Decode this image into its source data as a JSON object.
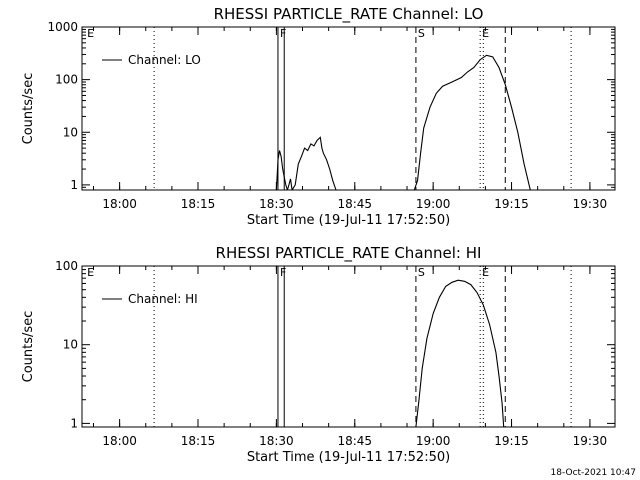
{
  "footer_timestamp": "18-Oct-2021 10:47",
  "chart_data": [
    {
      "type": "line",
      "title": "RHESSI PARTICLE_RATE Channel: LO",
      "xlabel": "Start Time (19-Jul-11 17:52:50)",
      "ylabel": "Counts/sec",
      "yscale": "log",
      "xlim": [
        17.88,
        19.58
      ],
      "ylim": [
        0.8,
        1000
      ],
      "xticks": [
        18.0,
        18.25,
        18.5,
        18.75,
        19.0,
        19.25,
        19.5
      ],
      "xticklabels": [
        "18:00",
        "18:15",
        "18:30",
        "18:45",
        "19:00",
        "19:15",
        "19:30"
      ],
      "yticks": [
        1,
        10,
        100,
        1000
      ],
      "yticklabels": [
        "1",
        "10",
        "100",
        "1000"
      ],
      "legend": {
        "label": "Channel: LO",
        "placement": "top-left"
      },
      "markers": [
        {
          "label": "F",
          "x": 18.505,
          "style": "solid"
        },
        {
          "label": "",
          "x": 18.525,
          "style": "solid"
        },
        {
          "label": "S",
          "x": 18.945,
          "style": "dashed"
        },
        {
          "label": "E",
          "x": 19.15,
          "style": "dotted"
        },
        {
          "label": "E",
          "x": 17.89,
          "style": "none"
        }
      ],
      "vlines": [
        {
          "x": 18.11,
          "style": "dotted"
        },
        {
          "x": 19.16,
          "style": "dotted"
        },
        {
          "x": 19.23,
          "style": "dashed"
        },
        {
          "x": 19.44,
          "style": "dotted"
        }
      ],
      "series": [
        {
          "values": [
            [
              18.5,
              0.8
            ],
            [
              18.505,
              3
            ],
            [
              18.51,
              4.5
            ],
            [
              18.515,
              3.5
            ],
            [
              18.52,
              2
            ],
            [
              18.53,
              1
            ],
            [
              18.535,
              0.8
            ],
            [
              18.54,
              1
            ],
            [
              18.545,
              1.3
            ],
            [
              18.55,
              0.8
            ],
            [
              18.56,
              1
            ],
            [
              18.57,
              2.5
            ],
            [
              18.58,
              3.5
            ],
            [
              18.59,
              5
            ],
            [
              18.6,
              4.5
            ],
            [
              18.61,
              6
            ],
            [
              18.62,
              5.5
            ],
            [
              18.63,
              7
            ],
            [
              18.64,
              8
            ],
            [
              18.645,
              5
            ],
            [
              18.65,
              4
            ],
            [
              18.66,
              3
            ],
            [
              18.67,
              2
            ],
            [
              18.68,
              1.2
            ],
            [
              18.69,
              0.8
            ],
            [
              18.94,
              0.8
            ],
            [
              18.95,
              1.2
            ],
            [
              18.96,
              4
            ],
            [
              18.97,
              12
            ],
            [
              18.99,
              30
            ],
            [
              19.01,
              55
            ],
            [
              19.03,
              75
            ],
            [
              19.06,
              90
            ],
            [
              19.09,
              110
            ],
            [
              19.11,
              140
            ],
            [
              19.13,
              170
            ],
            [
              19.15,
              240
            ],
            [
              19.17,
              290
            ],
            [
              19.19,
              270
            ],
            [
              19.21,
              170
            ],
            [
              19.23,
              80
            ],
            [
              19.25,
              30
            ],
            [
              19.27,
              10
            ],
            [
              19.29,
              2.5
            ],
            [
              19.31,
              0.8
            ]
          ]
        }
      ]
    },
    {
      "type": "line",
      "title": "RHESSI PARTICLE_RATE Channel: HI",
      "xlabel": "Start Time (19-Jul-11 17:52:50)",
      "ylabel": "Counts/sec",
      "yscale": "log",
      "xlim": [
        17.88,
        19.58
      ],
      "ylim": [
        0.9,
        100
      ],
      "xticks": [
        18.0,
        18.25,
        18.5,
        18.75,
        19.0,
        19.25,
        19.5
      ],
      "xticklabels": [
        "18:00",
        "18:15",
        "18:30",
        "18:45",
        "19:00",
        "19:15",
        "19:30"
      ],
      "yticks": [
        1,
        10,
        100
      ],
      "yticklabels": [
        "1",
        "10",
        "100"
      ],
      "legend": {
        "label": "Channel: HI",
        "placement": "top-left"
      },
      "markers": [
        {
          "label": "F",
          "x": 18.505,
          "style": "solid"
        },
        {
          "label": "",
          "x": 18.525,
          "style": "solid"
        },
        {
          "label": "S",
          "x": 18.945,
          "style": "dashed"
        },
        {
          "label": "E",
          "x": 19.15,
          "style": "dotted"
        },
        {
          "label": "E",
          "x": 17.89,
          "style": "none"
        }
      ],
      "vlines": [
        {
          "x": 18.11,
          "style": "dotted"
        },
        {
          "x": 19.16,
          "style": "dotted"
        },
        {
          "x": 19.23,
          "style": "dashed"
        },
        {
          "x": 19.44,
          "style": "dotted"
        }
      ],
      "series": [
        {
          "values": [
            [
              18.945,
              0.9
            ],
            [
              18.955,
              2
            ],
            [
              18.965,
              5
            ],
            [
              18.98,
              12
            ],
            [
              19.0,
              25
            ],
            [
              19.02,
              40
            ],
            [
              19.04,
              55
            ],
            [
              19.06,
              62
            ],
            [
              19.08,
              66
            ],
            [
              19.1,
              64
            ],
            [
              19.12,
              58
            ],
            [
              19.14,
              46
            ],
            [
              19.16,
              32
            ],
            [
              19.18,
              18
            ],
            [
              19.2,
              8
            ],
            [
              19.21,
              4
            ],
            [
              19.22,
              1.8
            ],
            [
              19.225,
              0.9
            ]
          ]
        }
      ]
    }
  ]
}
